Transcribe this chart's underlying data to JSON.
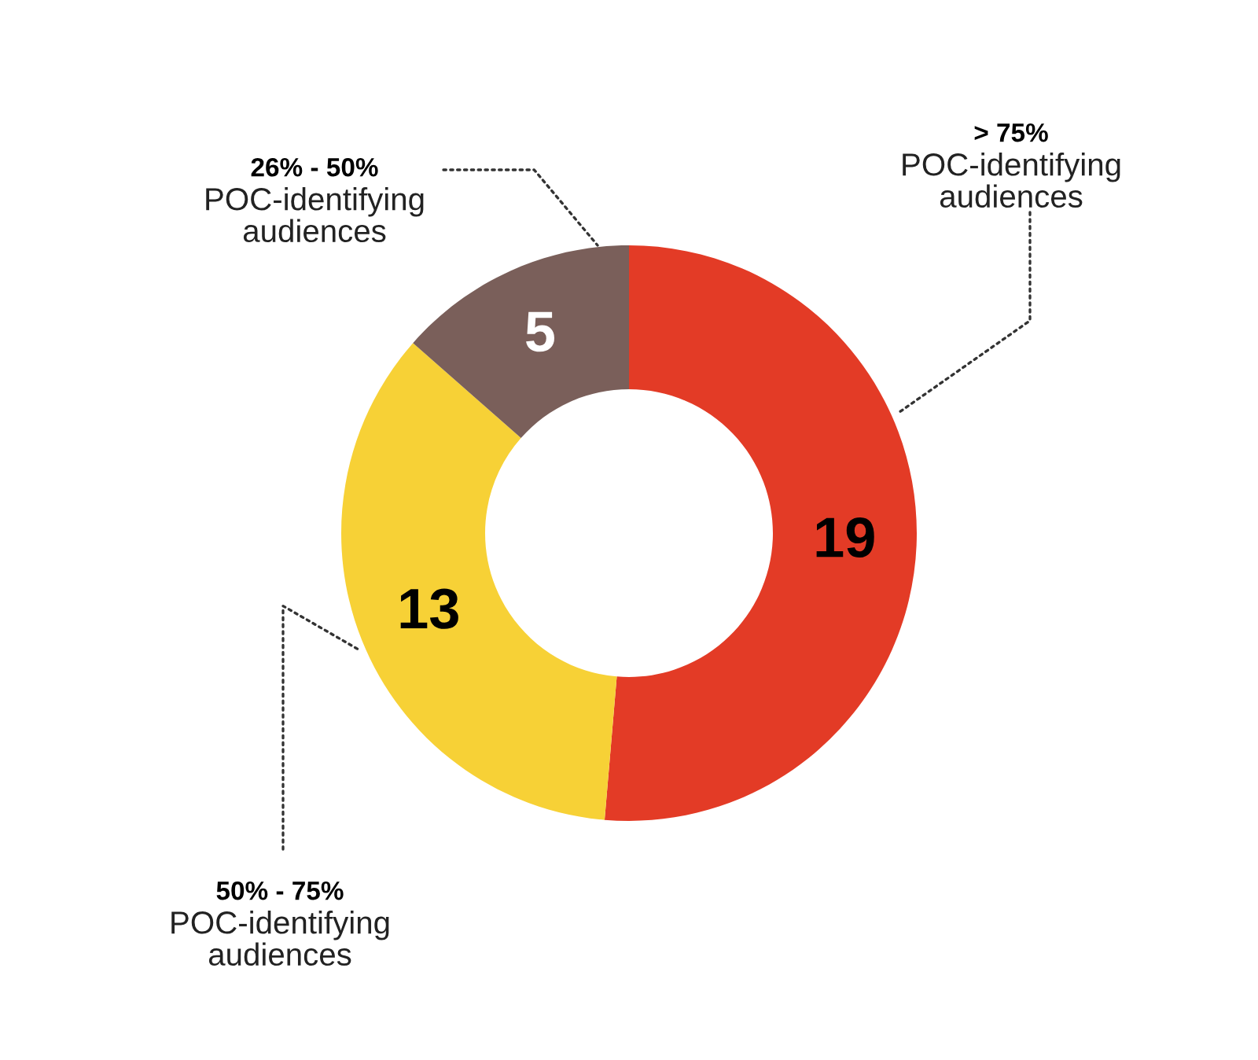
{
  "chart_data": {
    "type": "donut",
    "categories": [
      "> 75%\nPOC-identifying\naudiences",
      "50% - 75%\nPOC-identifying\naudiences",
      "26% - 50%\nPOC-identifying\naudiences"
    ],
    "values": [
      19,
      13,
      5
    ],
    "colors": [
      "#e33b26",
      "#f7d136",
      "#7a5f5a"
    ],
    "data_labels": true
  }
}
